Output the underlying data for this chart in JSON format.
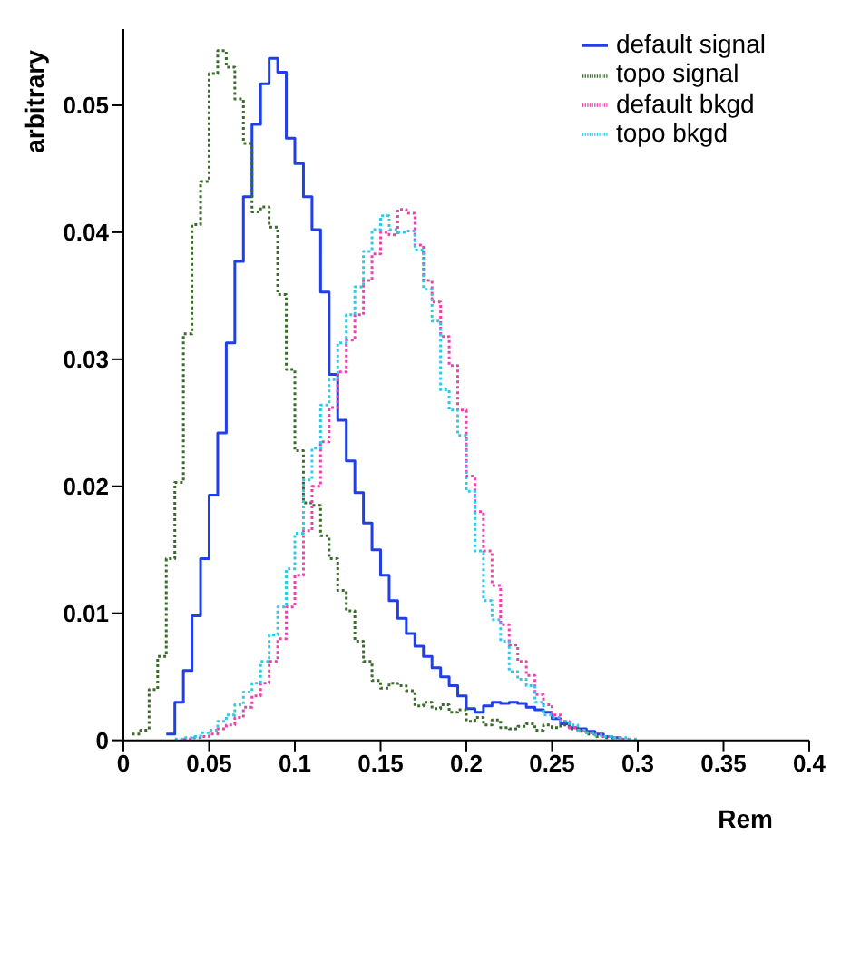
{
  "chart_data": {
    "type": "step",
    "xlabel": "Rem",
    "ylabel": "arbitrary",
    "series": [
      {
        "name": "default signal",
        "color": "#1f3fe8",
        "line_style": "solid",
        "x": [
          0.025,
          0.03,
          0.035,
          0.04,
          0.045,
          0.05,
          0.055,
          0.06,
          0.065,
          0.07,
          0.075,
          0.08,
          0.085,
          0.09,
          0.095,
          0.1,
          0.105,
          0.11,
          0.115,
          0.12,
          0.125,
          0.13,
          0.135,
          0.14,
          0.145,
          0.15,
          0.155,
          0.16,
          0.165,
          0.17,
          0.175,
          0.18,
          0.185,
          0.19,
          0.195,
          0.2,
          0.205,
          0.21,
          0.215,
          0.22,
          0.225,
          0.23,
          0.235,
          0.24,
          0.245,
          0.25,
          0.255,
          0.26,
          0.265,
          0.27,
          0.275,
          0.28,
          0.285,
          0.29
        ],
        "values": [
          0.0005,
          0.003,
          0.0055,
          0.0098,
          0.0143,
          0.0193,
          0.0242,
          0.0313,
          0.0377,
          0.0428,
          0.0485,
          0.0517,
          0.0537,
          0.0526,
          0.0474,
          0.0454,
          0.0428,
          0.0402,
          0.0353,
          0.0288,
          0.0252,
          0.022,
          0.0195,
          0.0171,
          0.015,
          0.013,
          0.011,
          0.0096,
          0.0084,
          0.0074,
          0.0066,
          0.0057,
          0.005,
          0.0043,
          0.0035,
          0.0025,
          0.0022,
          0.0027,
          0.003,
          0.0029,
          0.003,
          0.0029,
          0.0026,
          0.0024,
          0.0022,
          0.0017,
          0.0013,
          0.001,
          0.0009,
          0.0007,
          0.0005,
          0.0003,
          0.0002,
          0.0001
        ]
      },
      {
        "name": "topo signal",
        "color": "#3a6b2a",
        "line_style": "dotted",
        "x": [
          0.005,
          0.01,
          0.015,
          0.02,
          0.025,
          0.03,
          0.035,
          0.04,
          0.045,
          0.05,
          0.055,
          0.06,
          0.065,
          0.07,
          0.075,
          0.08,
          0.085,
          0.09,
          0.095,
          0.1,
          0.105,
          0.11,
          0.115,
          0.12,
          0.125,
          0.13,
          0.135,
          0.14,
          0.145,
          0.15,
          0.155,
          0.16,
          0.165,
          0.17,
          0.175,
          0.18,
          0.185,
          0.19,
          0.195,
          0.2,
          0.205,
          0.21,
          0.215,
          0.22,
          0.225,
          0.23,
          0.235,
          0.24,
          0.245,
          0.25,
          0.255,
          0.26,
          0.265,
          0.27,
          0.275,
          0.28,
          0.285
        ],
        "values": [
          0.0005,
          0.0008,
          0.004,
          0.0066,
          0.0143,
          0.0203,
          0.032,
          0.0406,
          0.044,
          0.0525,
          0.0543,
          0.053,
          0.0505,
          0.047,
          0.0416,
          0.042,
          0.0404,
          0.0351,
          0.0292,
          0.0228,
          0.0187,
          0.0185,
          0.0161,
          0.0143,
          0.0118,
          0.0102,
          0.0078,
          0.0062,
          0.0047,
          0.0041,
          0.0045,
          0.0043,
          0.0039,
          0.0027,
          0.003,
          0.0025,
          0.0028,
          0.0022,
          0.0024,
          0.0015,
          0.0018,
          0.0012,
          0.0016,
          0.001,
          0.0009,
          0.0011,
          0.0013,
          0.0008,
          0.0012,
          0.001,
          0.0012,
          0.0009,
          0.0007,
          0.0005,
          0.0003,
          0.0002,
          0.0001
        ]
      },
      {
        "name": "default bkgd",
        "color": "#f040b0",
        "line_style": "dotted",
        "x": [
          0.035,
          0.04,
          0.045,
          0.05,
          0.055,
          0.06,
          0.065,
          0.07,
          0.075,
          0.08,
          0.085,
          0.09,
          0.095,
          0.1,
          0.105,
          0.11,
          0.115,
          0.12,
          0.125,
          0.13,
          0.135,
          0.14,
          0.145,
          0.15,
          0.155,
          0.16,
          0.165,
          0.17,
          0.175,
          0.18,
          0.185,
          0.19,
          0.195,
          0.2,
          0.205,
          0.21,
          0.215,
          0.22,
          0.225,
          0.23,
          0.235,
          0.24,
          0.245,
          0.25,
          0.255,
          0.26,
          0.265,
          0.27,
          0.275,
          0.28,
          0.285,
          0.29,
          0.295
        ],
        "values": [
          0.0001,
          0.0002,
          0.0003,
          0.0005,
          0.0009,
          0.0012,
          0.0018,
          0.0026,
          0.0035,
          0.0045,
          0.0062,
          0.008,
          0.0105,
          0.013,
          0.0165,
          0.02,
          0.0235,
          0.0262,
          0.029,
          0.0315,
          0.0335,
          0.0362,
          0.0383,
          0.04,
          0.0398,
          0.0418,
          0.0415,
          0.039,
          0.0362,
          0.0345,
          0.0318,
          0.0295,
          0.026,
          0.0208,
          0.018,
          0.0149,
          0.0122,
          0.0091,
          0.0075,
          0.0062,
          0.0051,
          0.0036,
          0.0028,
          0.002,
          0.0015,
          0.001,
          0.0008,
          0.0006,
          0.0005,
          0.0003,
          0.0002,
          0.0001,
          0.0001
        ]
      },
      {
        "name": "topo bkgd",
        "color": "#30c8e8",
        "line_style": "dotted",
        "x": [
          0.03,
          0.035,
          0.04,
          0.045,
          0.05,
          0.055,
          0.06,
          0.065,
          0.07,
          0.075,
          0.08,
          0.085,
          0.09,
          0.095,
          0.1,
          0.105,
          0.11,
          0.115,
          0.12,
          0.125,
          0.13,
          0.135,
          0.14,
          0.145,
          0.15,
          0.155,
          0.16,
          0.165,
          0.17,
          0.175,
          0.18,
          0.185,
          0.19,
          0.195,
          0.2,
          0.205,
          0.21,
          0.215,
          0.22,
          0.225,
          0.23,
          0.235,
          0.24,
          0.245,
          0.25,
          0.255,
          0.26,
          0.265,
          0.27,
          0.275,
          0.28,
          0.285,
          0.29,
          0.295,
          0.3
        ],
        "values": [
          0.0001,
          0.0002,
          0.0003,
          0.0006,
          0.0008,
          0.0015,
          0.002,
          0.0028,
          0.0038,
          0.0045,
          0.0062,
          0.0083,
          0.0105,
          0.0135,
          0.0163,
          0.0205,
          0.023,
          0.0264,
          0.0284,
          0.0313,
          0.0335,
          0.0357,
          0.0385,
          0.0402,
          0.0413,
          0.0402,
          0.04,
          0.0401,
          0.0386,
          0.0355,
          0.033,
          0.0276,
          0.026,
          0.024,
          0.0196,
          0.0149,
          0.011,
          0.0095,
          0.0078,
          0.0054,
          0.0048,
          0.0043,
          0.003,
          0.002,
          0.0018,
          0.0015,
          0.0012,
          0.0008,
          0.0006,
          0.0004,
          0.0003,
          0.0002,
          0.0002,
          0.0001,
          0.0001
        ]
      }
    ],
    "xlim": [
      0,
      0.4
    ],
    "xticks": [
      0,
      0.05,
      0.1,
      0.15,
      0.2,
      0.25,
      0.3,
      0.35,
      0.4
    ],
    "ylim": [
      0,
      0.056
    ],
    "yticks": [
      0,
      0.01,
      0.02,
      0.03,
      0.04,
      0.05
    ],
    "legend": "top right",
    "marker": "none",
    "grid": false
  }
}
